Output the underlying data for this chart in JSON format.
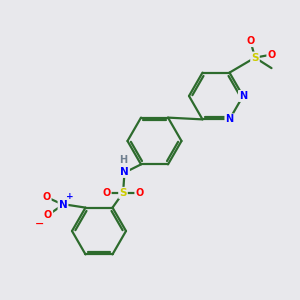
{
  "background_color": "#e8e8ec",
  "bond_color": "#2d6b2d",
  "atom_colors": {
    "N": "#0000ff",
    "S": "#cccc00",
    "O": "#ff0000",
    "H": "#708090",
    "C": "#2d6b2d"
  },
  "figsize": [
    3.0,
    3.0
  ],
  "dpi": 100,
  "xlim": [
    0,
    10
  ],
  "ylim": [
    0,
    10
  ],
  "lw": 1.6,
  "dbo": 0.12
}
